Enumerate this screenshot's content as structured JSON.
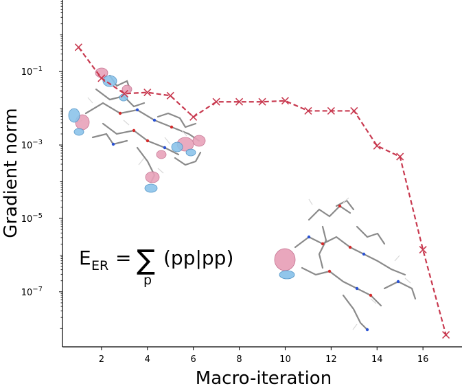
{
  "chart_data": {
    "type": "line",
    "xlabel": "Macro-iteration",
    "ylabel": "Gradient norm",
    "yscale": "log",
    "xlim": [
      0.3,
      17.7
    ],
    "ylim_log10": [
      -8.5,
      0.95
    ],
    "x_ticks": [
      2,
      4,
      6,
      8,
      10,
      12,
      14,
      16
    ],
    "y_ticks": [
      {
        "exp": -1,
        "base": "10",
        "sup": "−1"
      },
      {
        "exp": -3,
        "base": "10",
        "sup": "−3"
      },
      {
        "exp": -5,
        "base": "10",
        "sup": "−5"
      },
      {
        "exp": -7,
        "base": "10",
        "sup": "−7"
      }
    ],
    "series": [
      {
        "marker": "x",
        "line_style": "dashed",
        "color": "#c8394f",
        "x": [
          1,
          2,
          3,
          4,
          5,
          6,
          7,
          8,
          9,
          10,
          11,
          12,
          13,
          14,
          15,
          16,
          17
        ],
        "y": [
          0.46,
          0.066,
          0.025,
          0.027,
          0.022,
          0.0058,
          0.015,
          0.015,
          0.015,
          0.016,
          0.0085,
          0.0085,
          0.0085,
          0.00095,
          0.00048,
          1.4e-06,
          6.7e-09
        ]
      }
    ],
    "grid": false,
    "annotation": {
      "lhs": "E",
      "lhs_sub": "ER",
      "eq": "=",
      "sum_symbol": "∑",
      "sum_index": "p",
      "rhs": "(pp|pp)"
    }
  }
}
